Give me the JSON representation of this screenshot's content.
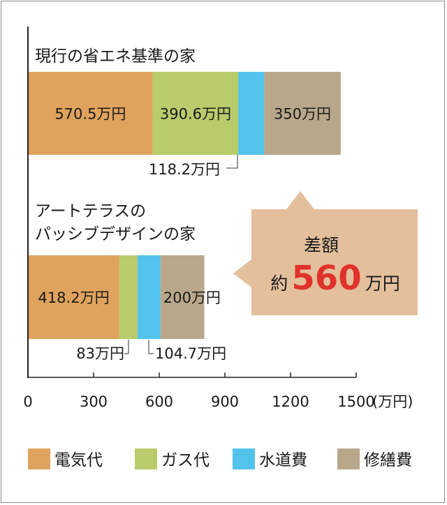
{
  "chart_data": {
    "type": "bar",
    "orientation": "horizontal",
    "stacked": true,
    "categories": [
      "現行の省エネ基準の家",
      "アートテラスのパッシブデザインの家"
    ],
    "category_lines": [
      [
        "現行の省エネ基準の家"
      ],
      [
        "アートテラスの",
        "パッシブデザインの家"
      ]
    ],
    "series": [
      {
        "name": "電気代",
        "color": "#e0a35d",
        "values": [
          570.5,
          418.2
        ],
        "labels": [
          "570.5万円",
          "418.2万円"
        ]
      },
      {
        "name": "ガス代",
        "color": "#b8cc6c",
        "values": [
          390.6,
          83
        ],
        "labels": [
          "390.6万円",
          "83万円"
        ]
      },
      {
        "name": "水道費",
        "color": "#52c3ec",
        "values": [
          118.2,
          104.7
        ],
        "labels": [
          "118.2万円",
          "104.7万円"
        ]
      },
      {
        "name": "修繕費",
        "color": "#b8a78a",
        "values": [
          350,
          200
        ],
        "labels": [
          "350万円",
          "200万円"
        ]
      }
    ],
    "xlim": [
      0,
      1500
    ],
    "xticks": [
      0,
      300,
      600,
      900,
      1200,
      1500
    ],
    "xtick_labels": [
      "0",
      "300",
      "600",
      "900",
      "1200",
      "1500"
    ],
    "xunit": "(万円)",
    "legend_position": "bottom",
    "grid": false
  },
  "callout": {
    "line1": "差額",
    "prefix": "約",
    "value": "560",
    "suffix": "万円",
    "background": "#e3bf9c",
    "value_color": "#e0322b"
  }
}
